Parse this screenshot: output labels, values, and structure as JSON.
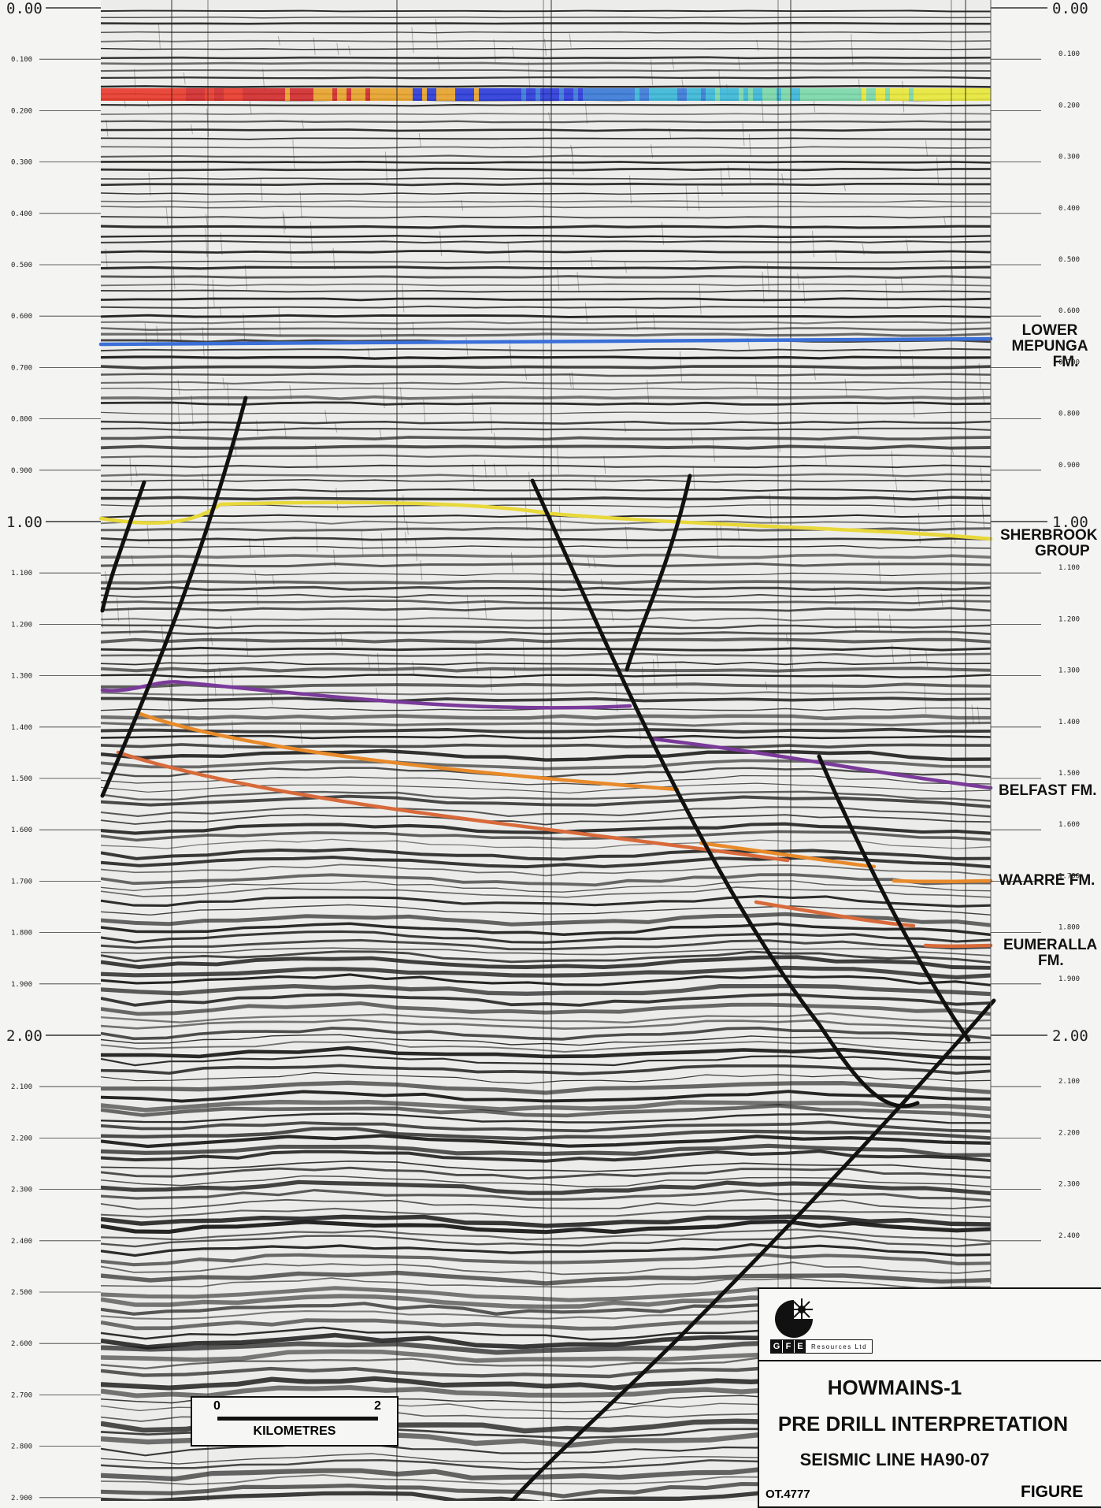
{
  "axis": {
    "unit": "",
    "left_major_labels": [
      "0.00",
      "1.00",
      "2.00"
    ],
    "left_minor_labels": [
      "0.100",
      "0.200",
      "0.300",
      "0.400",
      "0.500",
      "0.600",
      "0.700",
      "0.800",
      "0.900",
      "1.100",
      "1.200",
      "1.300",
      "1.400",
      "1.500",
      "1.600",
      "1.700",
      "1.800",
      "1.900",
      "2.100",
      "2.200",
      "2.300",
      "2.400",
      "2.500",
      "2.600",
      "2.700",
      "2.800",
      "2.900"
    ],
    "right_major_labels": [
      "0.00",
      "1.00",
      "2.00"
    ],
    "right_minor_labels": [
      "0.100",
      "0.200",
      "0.300",
      "0.400",
      "0.500",
      "0.600",
      "0.700",
      "0.800",
      "0.900",
      "1.100",
      "1.200",
      "1.300",
      "1.400",
      "1.500",
      "1.600",
      "1.700",
      "1.800",
      "1.900",
      "2.100",
      "2.200",
      "2.300",
      "2.400"
    ],
    "time_range": [
      0.0,
      2.9
    ]
  },
  "horizons": [
    {
      "id": "lower-mepunga",
      "label_lines": [
        "LOWER",
        "MEPUNGA",
        "FM."
      ],
      "color": "#3a6fd8",
      "time": 0.625
    },
    {
      "id": "sherbrook",
      "label_lines": [
        "SHERBROOK",
        "GROUP"
      ],
      "color": "#e8d83a",
      "time": 1.0
    },
    {
      "id": "belfast",
      "label_lines": [
        "BELFAST FM."
      ],
      "color": "#7a3a9a",
      "time": 1.45
    },
    {
      "id": "waarre",
      "label_lines": [
        "WAARRE FM."
      ],
      "color": "#e88a2a",
      "time": 1.62
    },
    {
      "id": "eumeralla",
      "label_lines": [
        "EUMERALLA",
        "FM."
      ],
      "color": "#d86a3a",
      "time": 1.72
    }
  ],
  "colors": {
    "fault": "#111111",
    "colour_bar": [
      "#e83a2a",
      "#d02a2a",
      "#e8a22a",
      "#2a3ad8",
      "#3a7ad8",
      "#3ab8d8",
      "#7ad8a8",
      "#e8e83a"
    ]
  },
  "scale_bar": {
    "start_label": "0",
    "end_label": "2",
    "units_label": "KILOMETRES"
  },
  "title_block": {
    "logo_icon": "gfe-star-logo",
    "logo_letters": [
      "G",
      "F",
      "E"
    ],
    "company": "Resources Ltd",
    "well_name": "HOWMAINS-1",
    "heading": "PRE DRILL INTERPRETATION",
    "seismic_line": "SEISMIC LINE HA90-07",
    "reference": "OT.4777",
    "figure_label": "FIGURE"
  }
}
